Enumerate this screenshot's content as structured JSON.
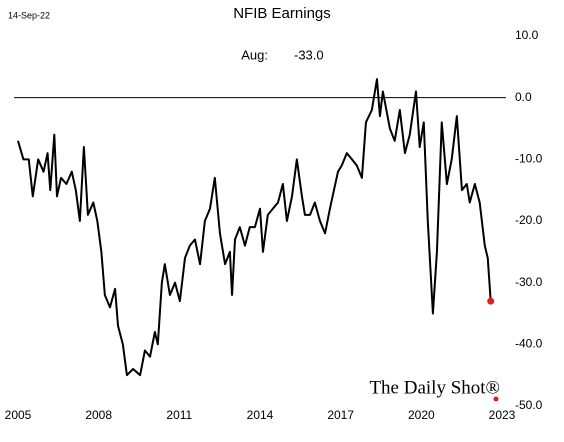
{
  "chart_data": {
    "type": "line",
    "title": "NFIB Earnings",
    "date": "14-Sep-22",
    "annotation": "Aug:",
    "watermark": "The Daily Shot®",
    "x": [
      2005.0,
      2005.2,
      2005.4,
      2005.55,
      2005.75,
      2005.95,
      2006.1,
      2006.2,
      2006.35,
      2006.45,
      2006.6,
      2006.8,
      2007.0,
      2007.15,
      2007.3,
      2007.45,
      2007.6,
      2007.8,
      2007.95,
      2008.1,
      2008.23,
      2008.42,
      2008.61,
      2008.72,
      2008.9,
      2009.05,
      2009.28,
      2009.54,
      2009.72,
      2009.91,
      2010.09,
      2010.2,
      2010.35,
      2010.46,
      2010.65,
      2010.84,
      2011.02,
      2011.21,
      2011.39,
      2011.58,
      2011.77,
      2011.95,
      2012.14,
      2012.32,
      2012.51,
      2012.7,
      2012.88,
      2012.96,
      2013.07,
      2013.25,
      2013.44,
      2013.62,
      2013.81,
      2014.0,
      2014.11,
      2014.29,
      2014.48,
      2014.67,
      2014.85,
      2015.0,
      2015.19,
      2015.37,
      2015.56,
      2015.67,
      2015.86,
      2016.04,
      2016.23,
      2016.42,
      2016.6,
      2016.9,
      2017.04,
      2017.23,
      2017.42,
      2017.6,
      2017.79,
      2017.94,
      2018.16,
      2018.35,
      2018.46,
      2018.57,
      2018.83,
      2019.01,
      2019.2,
      2019.39,
      2019.57,
      2019.8,
      2019.94,
      2020.09,
      2020.24,
      2020.43,
      2020.58,
      2020.76,
      2020.95,
      2021.13,
      2021.32,
      2021.51,
      2021.69,
      2021.8,
      2021.99,
      2022.17,
      2022.36,
      2022.47,
      2022.58
    ],
    "series": [
      {
        "name": "NFIB Earnings",
        "color": "#000000",
        "values": [
          -7,
          -10,
          -10,
          -16,
          -10,
          -12,
          -9,
          -15,
          -6,
          -16,
          -13,
          -14,
          -12,
          -15,
          -20,
          -8,
          -19,
          -17,
          -20,
          -25,
          -32,
          -34,
          -31,
          -37,
          -40,
          -45,
          -44,
          -45,
          -41,
          -42,
          -38,
          -40,
          -30,
          -27,
          -32,
          -30,
          -33,
          -26,
          -24,
          -23,
          -27,
          -20,
          -18,
          -13,
          -22,
          -27,
          -25,
          -32,
          -23,
          -21,
          -24,
          -21,
          -21,
          -18,
          -25,
          -19,
          -18,
          -17,
          -14,
          -20,
          -16,
          -10,
          -16,
          -19,
          -19,
          -17,
          -20,
          -22,
          -18,
          -12,
          -11,
          -9,
          -10,
          -11,
          -13,
          -4,
          -2,
          3,
          -3,
          1,
          -5,
          -7,
          -2,
          -9,
          -6,
          1,
          -8,
          -4,
          -20,
          -35,
          -25,
          -4,
          -14,
          -10,
          -3,
          -15,
          -14,
          -17,
          -14,
          -17,
          -24,
          -26,
          -33
        ],
        "value_labels": [
          null,
          null,
          null,
          null,
          null,
          null,
          null,
          null,
          null,
          null,
          null,
          null,
          null,
          null,
          null,
          null,
          null,
          null,
          null,
          null,
          null,
          null,
          null,
          null,
          null,
          null,
          null,
          null,
          null,
          null,
          null,
          null,
          null,
          null,
          null,
          null,
          null,
          null,
          null,
          null,
          null,
          null,
          null,
          null,
          null,
          null,
          null,
          null,
          null,
          null,
          null,
          null,
          null,
          null,
          null,
          null,
          null,
          null,
          null,
          null,
          null,
          null,
          null,
          null,
          null,
          null,
          null,
          null,
          null,
          null,
          null,
          null,
          null,
          null,
          null,
          null,
          null,
          null,
          null,
          null,
          null,
          null,
          null,
          null,
          null,
          null,
          null,
          null,
          null,
          null,
          null,
          null,
          null,
          null,
          null,
          null,
          null,
          null,
          null,
          null,
          null,
          null,
          "-33.0"
        ]
      }
    ],
    "last_point_color": "#e0201b",
    "zero_line": true,
    "xlim": [
      2005,
      2023
    ],
    "xticks": [
      2005,
      2008,
      2011,
      2014,
      2017,
      2020,
      2023
    ],
    "ylim": [
      -50,
      10
    ],
    "yticks": [
      {
        "value": 10,
        "label": "10.0"
      },
      {
        "value": 0,
        "label": "0.0"
      },
      {
        "value": -10,
        "label": "-10.0"
      },
      {
        "value": -20,
        "label": "-20.0"
      },
      {
        "value": -30,
        "label": "-30.0"
      },
      {
        "value": -40,
        "label": "-40.0"
      },
      {
        "value": -50,
        "label": "-50.0"
      }
    ]
  }
}
